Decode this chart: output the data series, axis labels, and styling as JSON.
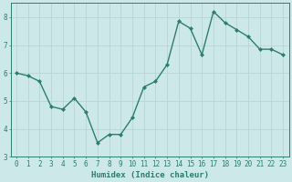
{
  "x": [
    0,
    1,
    2,
    3,
    4,
    5,
    6,
    7,
    8,
    9,
    10,
    11,
    12,
    13,
    14,
    15,
    16,
    17,
    18,
    19,
    20,
    21,
    22,
    23
  ],
  "y": [
    6.0,
    5.9,
    5.7,
    4.8,
    4.7,
    5.1,
    4.6,
    3.5,
    3.8,
    3.8,
    4.4,
    5.5,
    5.7,
    6.3,
    7.85,
    7.6,
    6.65,
    8.2,
    7.8,
    7.55,
    7.3,
    6.85,
    6.85,
    6.65
  ],
  "line_color": "#2e7d6e",
  "marker": "D",
  "marker_size": 2.0,
  "bg_color": "#cce8e8",
  "grid_color": "#b8d4d4",
  "xlabel": "Humidex (Indice chaleur)",
  "xlim": [
    -0.5,
    23.5
  ],
  "ylim": [
    3,
    8.5
  ],
  "yticks": [
    3,
    4,
    5,
    6,
    7,
    8
  ],
  "xticks": [
    0,
    1,
    2,
    3,
    4,
    5,
    6,
    7,
    8,
    9,
    10,
    11,
    12,
    13,
    14,
    15,
    16,
    17,
    18,
    19,
    20,
    21,
    22,
    23
  ],
  "tick_color": "#2e7d6e",
  "label_fontsize": 6.5,
  "tick_fontsize": 5.5,
  "linewidth": 1.0
}
